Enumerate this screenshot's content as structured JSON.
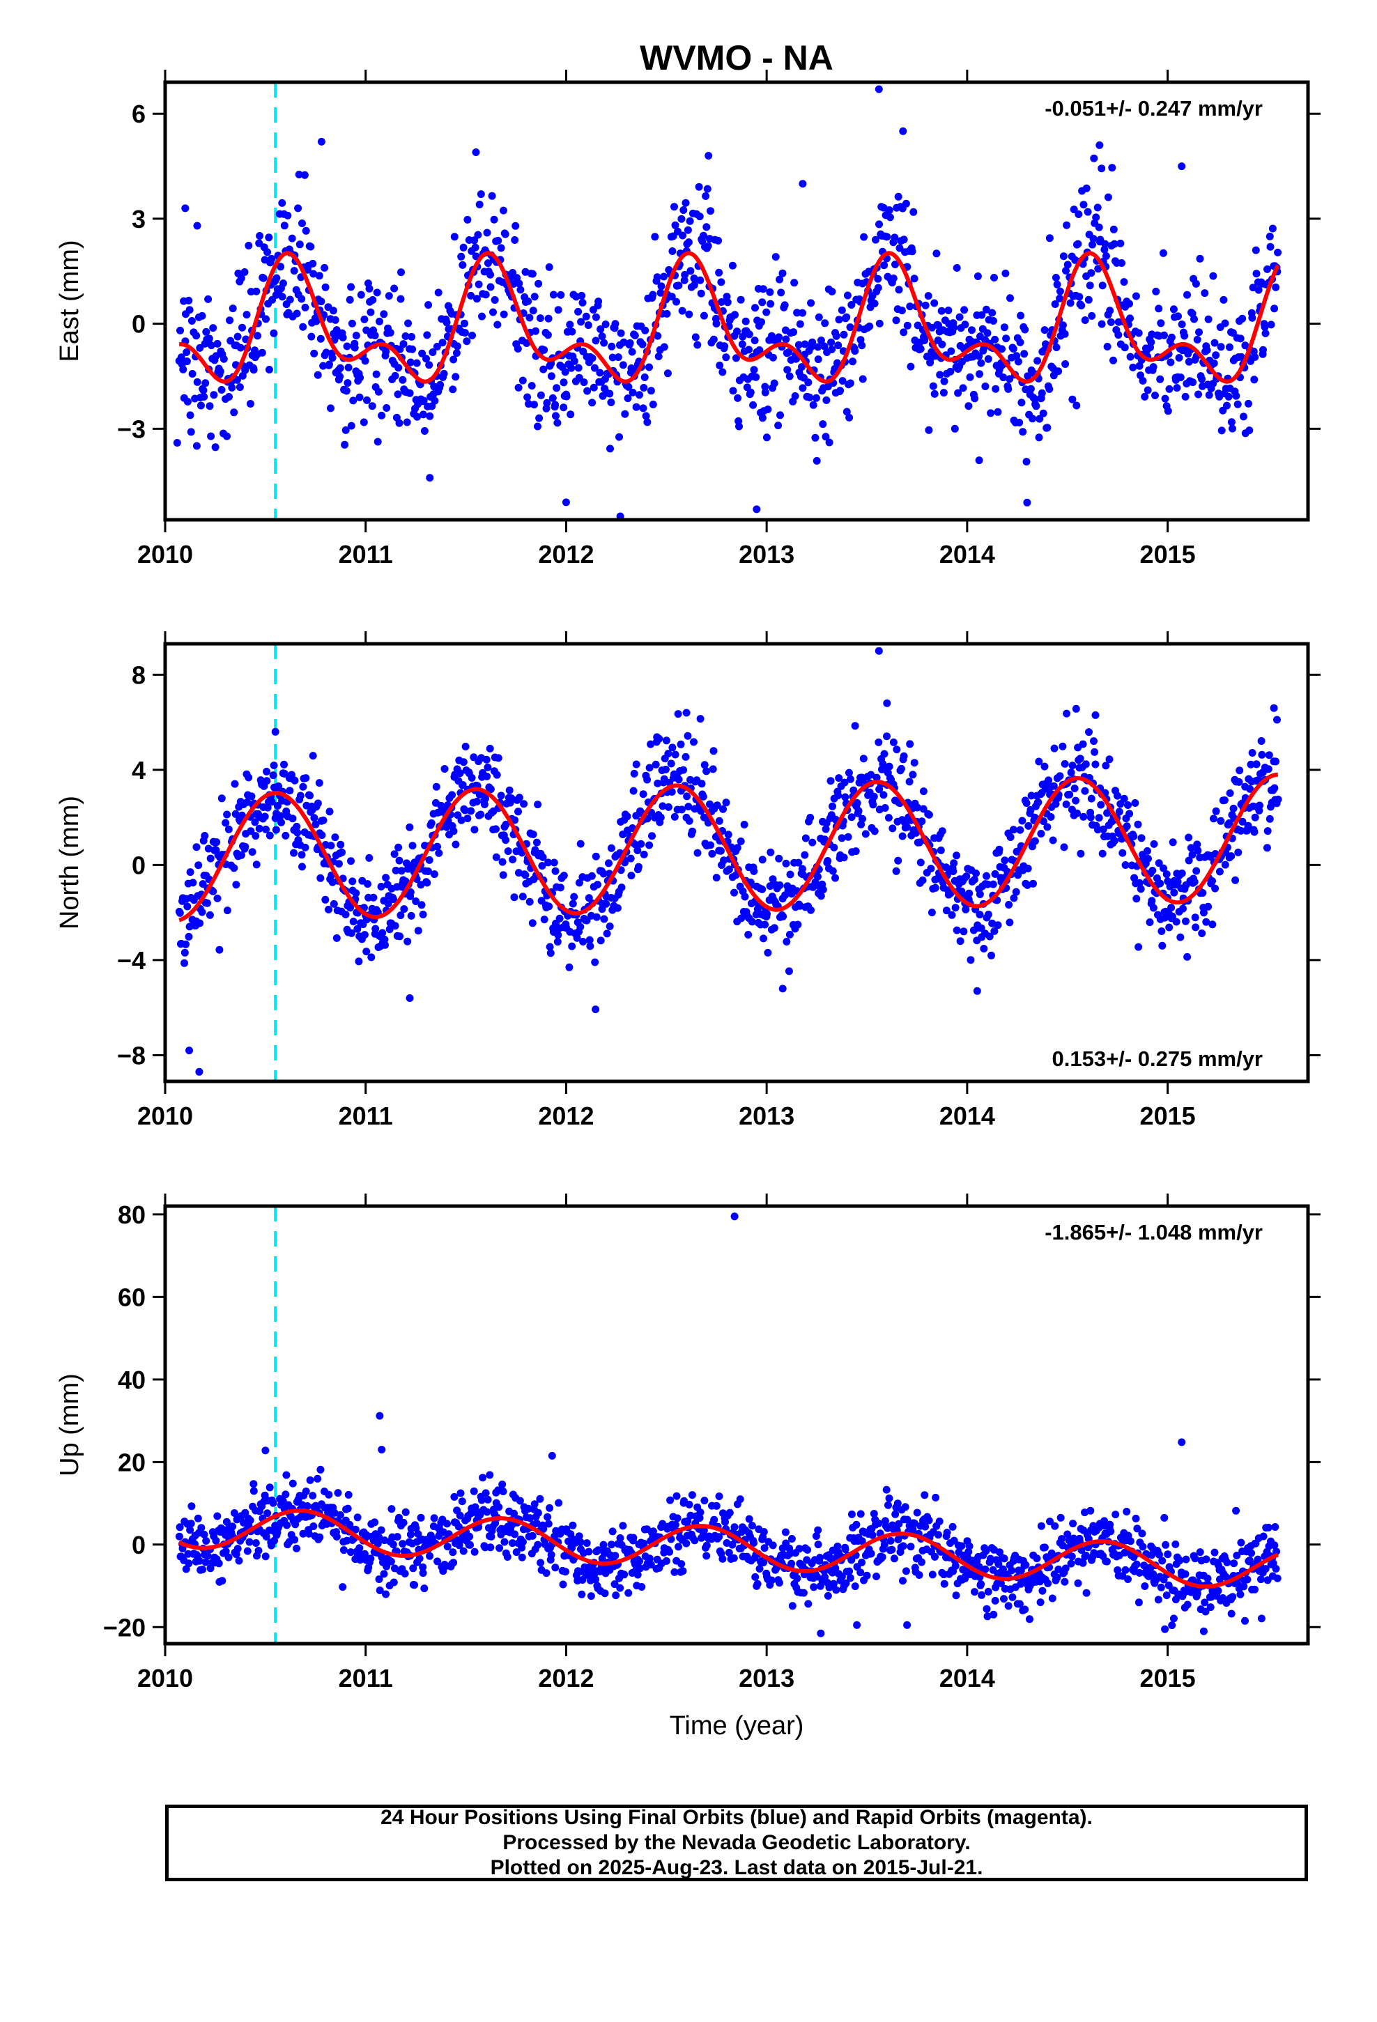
{
  "title": "WVMO - NA",
  "colors": {
    "points": "#0000ff",
    "fit": "#ff0000",
    "marker": "#00e5ee",
    "frame": "#000000"
  },
  "chart_data": [
    {
      "type": "scatter",
      "id": "east",
      "ylabel": "East (mm)",
      "xlabel": "",
      "rate_label": "-0.051+/- 0.247 mm/yr",
      "xlim": [
        2010.0,
        2015.7
      ],
      "ylim": [
        -5.6,
        6.9
      ],
      "xticks": [
        2010,
        2011,
        2012,
        2013,
        2014,
        2015
      ],
      "yticks": [
        -3,
        0,
        3,
        6
      ],
      "event_line_x": 2010.55,
      "data_range": [
        2010.07,
        2015.55
      ],
      "model": {
        "offset": -0.2,
        "annual_amp": 1.35,
        "annual_phase": 2010.64,
        "semi_amp": 0.9,
        "semi_phase": 2010.6,
        "noise_sd": 1.05,
        "n": 1500
      },
      "outliers": [
        [
          2010.06,
          -3.4
        ],
        [
          2010.1,
          3.3
        ],
        [
          2010.16,
          2.8
        ],
        [
          2010.78,
          5.2
        ],
        [
          2011.32,
          -4.4
        ],
        [
          2011.55,
          4.9
        ],
        [
          2012.0,
          -5.1
        ],
        [
          2012.27,
          -5.5
        ],
        [
          2012.71,
          4.8
        ],
        [
          2012.95,
          -5.3
        ],
        [
          2013.18,
          4.0
        ],
        [
          2013.56,
          6.7
        ],
        [
          2013.68,
          5.5
        ],
        [
          2014.06,
          -3.9
        ],
        [
          2014.66,
          5.1
        ],
        [
          2015.07,
          4.5
        ]
      ]
    },
    {
      "type": "scatter",
      "id": "north",
      "ylabel": "North (mm)",
      "xlabel": "",
      "rate_label": "0.153+/- 0.275 mm/yr",
      "xlim": [
        2010.0,
        2015.7
      ],
      "ylim": [
        -9.1,
        9.3
      ],
      "xticks": [
        2010,
        2011,
        2012,
        2013,
        2014,
        2015
      ],
      "yticks": [
        -8,
        -4,
        0,
        4,
        8
      ],
      "event_line_x": 2010.55,
      "data_range": [
        2010.07,
        2015.55
      ],
      "model": {
        "offset": 0.3,
        "trend": 0.153,
        "annual_amp": 2.65,
        "annual_phase": 2010.55,
        "noise_sd": 1.1,
        "n": 1500
      },
      "outliers": [
        [
          2010.12,
          -7.8
        ],
        [
          2010.17,
          -8.7
        ],
        [
          2010.55,
          5.6
        ],
        [
          2011.22,
          -5.6
        ],
        [
          2012.6,
          6.4
        ],
        [
          2013.08,
          -5.2
        ],
        [
          2013.56,
          9.0
        ],
        [
          2013.6,
          6.8
        ],
        [
          2014.05,
          -5.3
        ],
        [
          2014.64,
          6.3
        ],
        [
          2015.53,
          6.6
        ]
      ]
    },
    {
      "type": "scatter",
      "id": "up",
      "ylabel": "Up (mm)",
      "xlabel": "Time (year)",
      "rate_label": "-1.865+/- 1.048 mm/yr",
      "xlim": [
        2010.0,
        2015.7
      ],
      "ylim": [
        -24,
        82
      ],
      "xticks": [
        2010,
        2011,
        2012,
        2013,
        2014,
        2015
      ],
      "yticks": [
        -20,
        0,
        20,
        40,
        60,
        80
      ],
      "event_line_x": 2010.55,
      "data_range": [
        2010.07,
        2015.55
      ],
      "model": {
        "offset": 4.5,
        "trend": -1.865,
        "annual_amp": 5.0,
        "annual_phase": 2010.68,
        "noise_sd": 4.3,
        "n": 1500
      },
      "outliers": [
        [
          2010.5,
          22.8
        ],
        [
          2011.07,
          31.2
        ],
        [
          2011.08,
          23.0
        ],
        [
          2011.93,
          21.5
        ],
        [
          2012.84,
          79.5
        ],
        [
          2013.27,
          -21.5
        ],
        [
          2013.45,
          -19.5
        ],
        [
          2013.7,
          -19.5
        ],
        [
          2015.07,
          24.8
        ],
        [
          2015.18,
          -21.0
        ]
      ]
    }
  ],
  "caption": {
    "line1": "24 Hour Positions Using Final Orbits (blue) and Rapid Orbits (magenta).",
    "line2": "Processed by the Nevada Geodetic Laboratory.",
    "line3": "Plotted on 2025-Aug-23. Last data on 2015-Jul-21."
  }
}
